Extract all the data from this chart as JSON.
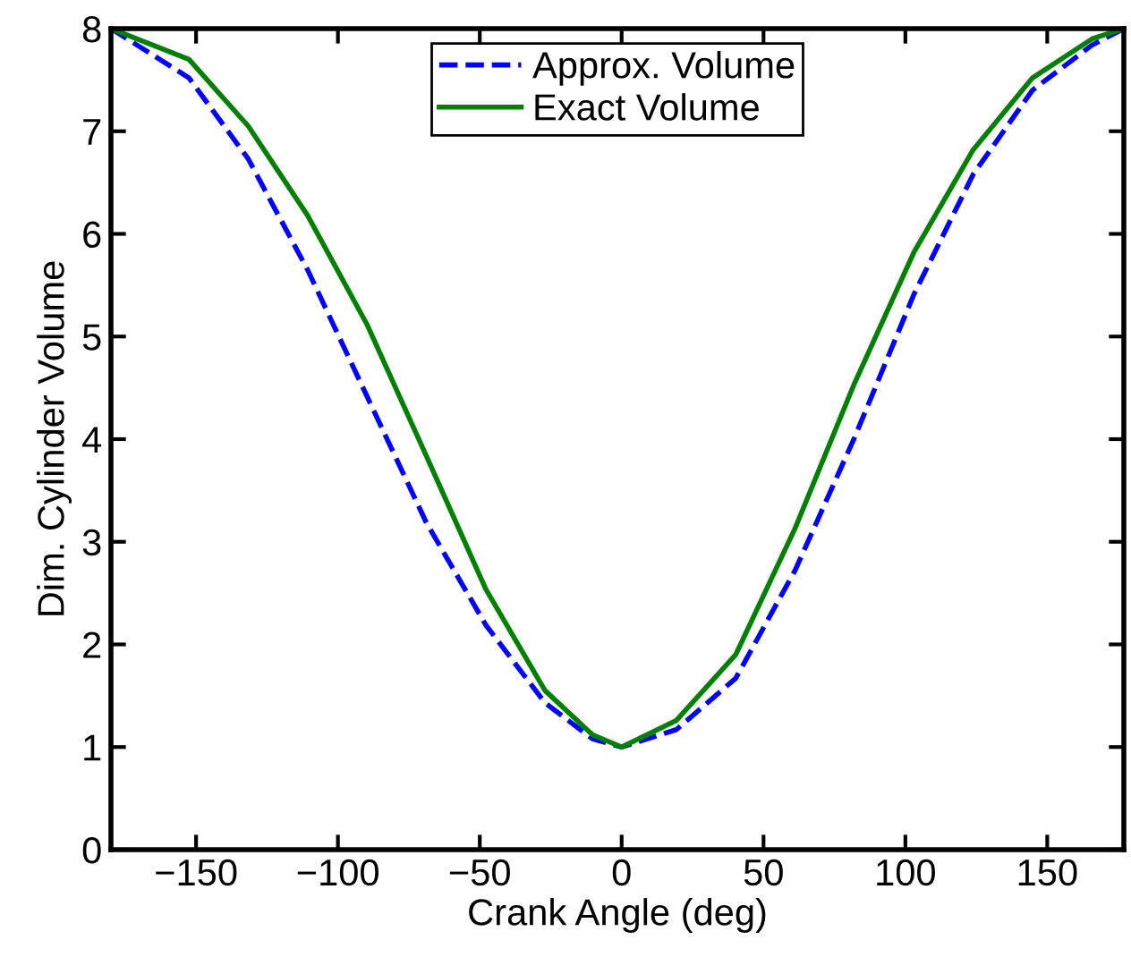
{
  "chart_data": {
    "type": "line",
    "xlabel": "Crank Angle (deg)",
    "ylabel": "Dim. Cylinder Volume",
    "xlim": [
      -180,
      177
    ],
    "ylim": [
      0,
      8
    ],
    "xticks": [
      {
        "value": -150,
        "label": "−150"
      },
      {
        "value": -100,
        "label": "−100"
      },
      {
        "value": -50,
        "label": "−50"
      },
      0,
      50,
      100,
      150
    ],
    "yticks": [
      0,
      1,
      2,
      3,
      4,
      5,
      6,
      7,
      8
    ],
    "grid": false,
    "legend": "top",
    "marker": "none",
    "series": [
      {
        "name": "Approx. Volume",
        "color": "#0000ff",
        "line_style": "dashed",
        "x": [
          -180,
          -152.5,
          -131.6,
          -110.7,
          -89.8,
          -68.9,
          -47.9,
          -27,
          -10.3,
          0,
          19.3,
          40.2,
          61.1,
          82,
          103,
          123.9,
          144.8,
          165.8,
          177
        ],
        "values": [
          8,
          7.52,
          6.73,
          5.65,
          4.42,
          3.19,
          2.19,
          1.43,
          1.08,
          1,
          1.17,
          1.67,
          2.72,
          4.01,
          5.41,
          6.58,
          7.4,
          7.84,
          8
        ]
      },
      {
        "name": "Exact Volume",
        "color": "#008000",
        "line_style": "solid",
        "x": [
          -180,
          -152.5,
          -131.6,
          -110.7,
          -89.8,
          -68.9,
          -47.9,
          -27,
          -10.3,
          0,
          19.3,
          40.2,
          61.1,
          82,
          103,
          123.9,
          144.8,
          165.8,
          177
        ],
        "values": [
          8,
          7.7,
          7.05,
          6.18,
          5.12,
          3.84,
          2.54,
          1.55,
          1.12,
          1,
          1.26,
          1.9,
          3.13,
          4.54,
          5.82,
          6.82,
          7.52,
          7.9,
          8
        ]
      }
    ]
  }
}
